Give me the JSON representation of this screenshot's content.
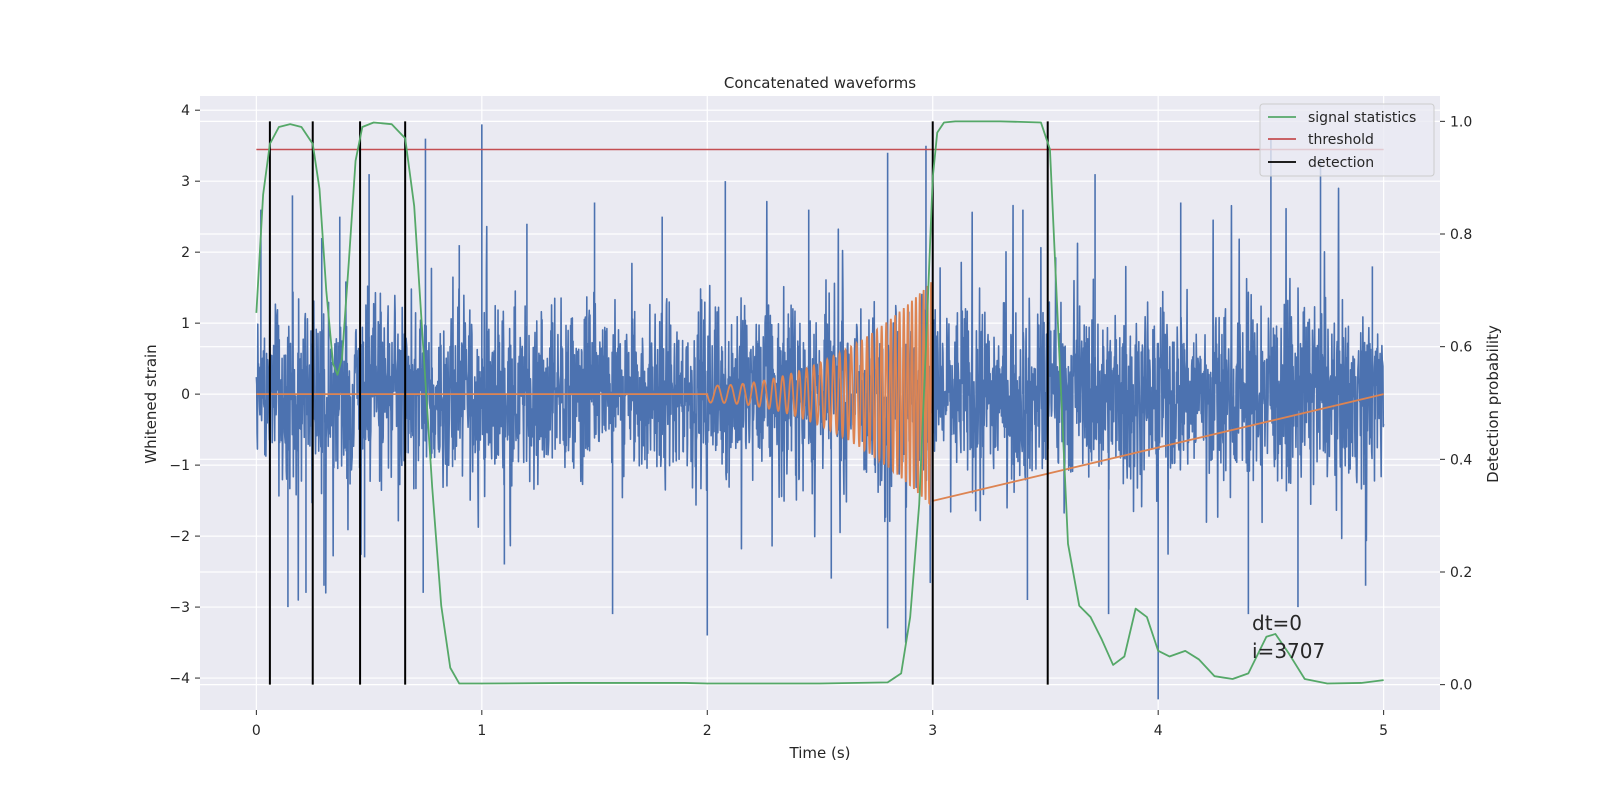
{
  "chart_data": {
    "type": "line",
    "title": "Concatenated waveforms",
    "xlabel": "Time (s)",
    "ylabel": "Whitened strain",
    "y2label": "Detection probability",
    "xlim": [
      -0.25,
      5.25
    ],
    "ylim": [
      -4.45,
      4.2
    ],
    "y2lim": [
      -0.045,
      1.045
    ],
    "xticks": [
      "0",
      "1",
      "2",
      "3",
      "4",
      "5"
    ],
    "yticks": [
      "−4",
      "−3",
      "−2",
      "−1",
      "0",
      "1",
      "2",
      "3",
      "4"
    ],
    "y2ticks": [
      "0.0",
      "0.2",
      "0.4",
      "0.6",
      "0.8",
      "1.0"
    ],
    "grid": true,
    "legend_position": "top-right",
    "colors": {
      "background": "#eaeaf2",
      "grid": "#ffffff",
      "strain": "#4c72b0",
      "template": "#dd8452",
      "signal_statistics": "#55a868",
      "threshold": "#c44e52",
      "detection": "#000000"
    },
    "series": [
      {
        "name": "signal statistics",
        "axis": "right",
        "x": [
          0.0,
          0.03,
          0.06,
          0.1,
          0.15,
          0.2,
          0.25,
          0.28,
          0.31,
          0.34,
          0.36,
          0.38,
          0.41,
          0.44,
          0.47,
          0.52,
          0.6,
          0.66,
          0.7,
          0.74,
          0.78,
          0.82,
          0.86,
          0.9,
          1.0,
          1.4,
          1.9,
          2.0,
          2.5,
          2.8,
          2.86,
          2.9,
          2.94,
          2.97,
          3.0,
          3.02,
          3.05,
          3.1,
          3.3,
          3.48,
          3.52,
          3.56,
          3.6,
          3.65,
          3.7,
          3.75,
          3.8,
          3.85,
          3.9,
          3.95,
          4.0,
          4.05,
          4.12,
          4.18,
          4.25,
          4.33,
          4.4,
          4.48,
          4.52,
          4.58,
          4.65,
          4.75,
          4.9,
          5.0
        ],
        "y": [
          0.66,
          0.87,
          0.96,
          0.99,
          0.995,
          0.99,
          0.96,
          0.88,
          0.7,
          0.57,
          0.55,
          0.58,
          0.75,
          0.93,
          0.99,
          0.998,
          0.995,
          0.97,
          0.85,
          0.6,
          0.35,
          0.14,
          0.03,
          0.002,
          0.002,
          0.003,
          0.003,
          0.002,
          0.002,
          0.004,
          0.02,
          0.12,
          0.32,
          0.6,
          0.9,
          0.98,
          0.998,
          1.0,
          1.0,
          0.998,
          0.95,
          0.6,
          0.25,
          0.14,
          0.12,
          0.08,
          0.035,
          0.05,
          0.135,
          0.12,
          0.06,
          0.05,
          0.06,
          0.045,
          0.015,
          0.01,
          0.02,
          0.085,
          0.09,
          0.055,
          0.01,
          0.002,
          0.003,
          0.008
        ]
      },
      {
        "name": "threshold",
        "axis": "right",
        "x": [
          0.0,
          5.0
        ],
        "y": [
          0.95,
          0.95
        ]
      },
      {
        "name": "detection",
        "axis": "right",
        "x": [
          0.06,
          0.25,
          0.46,
          0.66,
          3.0,
          3.51
        ],
        "y_range": [
          0.0,
          1.0
        ]
      },
      {
        "name": "",
        "axis": "left",
        "label": "whitened strain (noise)",
        "x_range": [
          0.0,
          5.0
        ],
        "typical_sigma": 0.6,
        "spike_peaks": [
          {
            "x": 0.02,
            "y": 2.6
          },
          {
            "x": 0.16,
            "y": 2.8
          },
          {
            "x": 0.29,
            "y": 2.2
          },
          {
            "x": 0.37,
            "y": 2.5
          },
          {
            "x": 0.5,
            "y": 3.1
          },
          {
            "x": 0.75,
            "y": 3.6
          },
          {
            "x": 0.9,
            "y": 2.1
          },
          {
            "x": 1.0,
            "y": 3.8
          },
          {
            "x": 1.2,
            "y": 2.4
          },
          {
            "x": 1.5,
            "y": 2.7
          },
          {
            "x": 1.8,
            "y": 2.5
          },
          {
            "x": 2.08,
            "y": 3.0
          },
          {
            "x": 2.45,
            "y": 2.6
          },
          {
            "x": 2.8,
            "y": 3.4
          },
          {
            "x": 2.97,
            "y": 3.5
          },
          {
            "x": 3.4,
            "y": 2.6
          },
          {
            "x": 3.72,
            "y": 3.1
          },
          {
            "x": 4.1,
            "y": 2.7
          },
          {
            "x": 4.5,
            "y": 3.6
          },
          {
            "x": 4.72,
            "y": 3.3
          },
          {
            "x": 4.95,
            "y": 1.8
          }
        ],
        "spike_troughs": [
          {
            "x": 0.06,
            "y": -2.6
          },
          {
            "x": 0.14,
            "y": -3.0
          },
          {
            "x": 0.22,
            "y": -2.8
          },
          {
            "x": 0.3,
            "y": -2.7
          },
          {
            "x": 0.48,
            "y": -2.3
          },
          {
            "x": 0.74,
            "y": -2.8
          },
          {
            "x": 1.1,
            "y": -2.4
          },
          {
            "x": 1.58,
            "y": -3.1
          },
          {
            "x": 2.0,
            "y": -3.4
          },
          {
            "x": 2.55,
            "y": -2.6
          },
          {
            "x": 2.8,
            "y": -3.3
          },
          {
            "x": 2.88,
            "y": -3.5
          },
          {
            "x": 3.42,
            "y": -2.9
          },
          {
            "x": 3.78,
            "y": -3.1
          },
          {
            "x": 4.0,
            "y": -4.3
          },
          {
            "x": 4.4,
            "y": -3.1
          },
          {
            "x": 4.62,
            "y": -3.0
          },
          {
            "x": 4.92,
            "y": -2.7
          }
        ]
      },
      {
        "name": "",
        "axis": "left",
        "label": "injected chirp template",
        "x_range": [
          2.0,
          3.0
        ],
        "baseline": 0.0,
        "amplitude_start": 0.12,
        "amplitude_end": 1.6,
        "frequency_start_hz": 16,
        "frequency_end_hz": 62
      }
    ],
    "annotations": [
      "dt=0",
      "i=3707"
    ]
  }
}
